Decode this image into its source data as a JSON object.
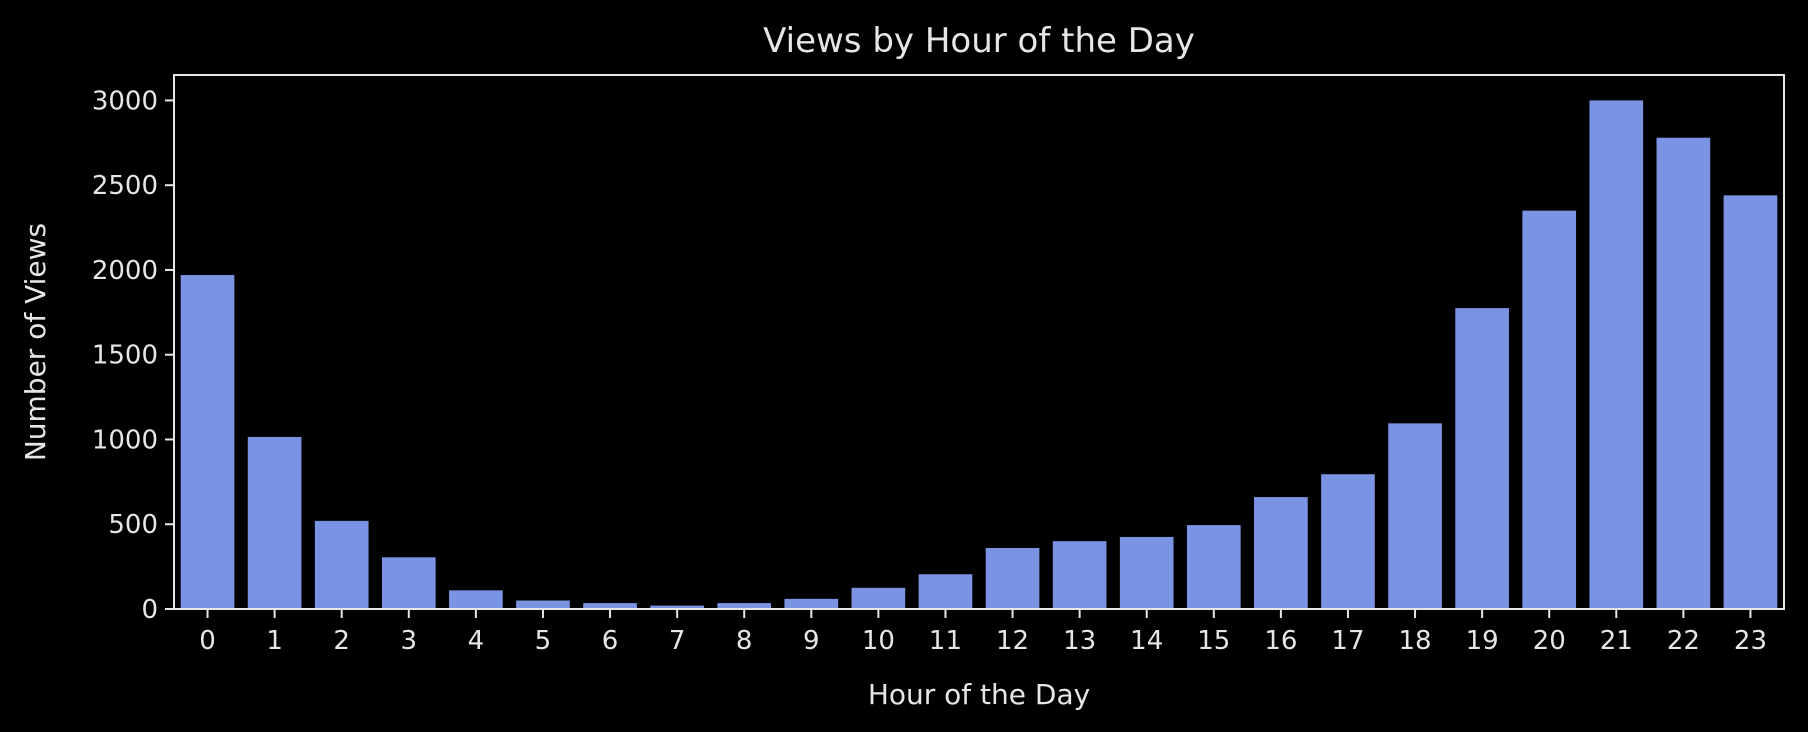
{
  "chart_data": {
    "type": "bar",
    "title": "Views by Hour of the Day",
    "xlabel": "Hour of the Day",
    "ylabel": "Number of Views",
    "categories": [
      "0",
      "1",
      "2",
      "3",
      "4",
      "5",
      "6",
      "7",
      "8",
      "9",
      "10",
      "11",
      "12",
      "13",
      "14",
      "15",
      "16",
      "17",
      "18",
      "19",
      "20",
      "21",
      "22",
      "23"
    ],
    "values": [
      1970,
      1015,
      520,
      305,
      110,
      50,
      35,
      20,
      35,
      60,
      125,
      205,
      360,
      400,
      425,
      495,
      660,
      795,
      1095,
      1775,
      2350,
      3000,
      2780,
      2440
    ],
    "ylim": [
      0,
      3150
    ],
    "yticks": [
      0,
      500,
      1000,
      1500,
      2000,
      2500,
      3000
    ],
    "grid": false,
    "colors": {
      "bar": "#7a94e3",
      "background": "#000000",
      "text": "#e6e6e6",
      "axes": "#e6e6e6"
    }
  }
}
